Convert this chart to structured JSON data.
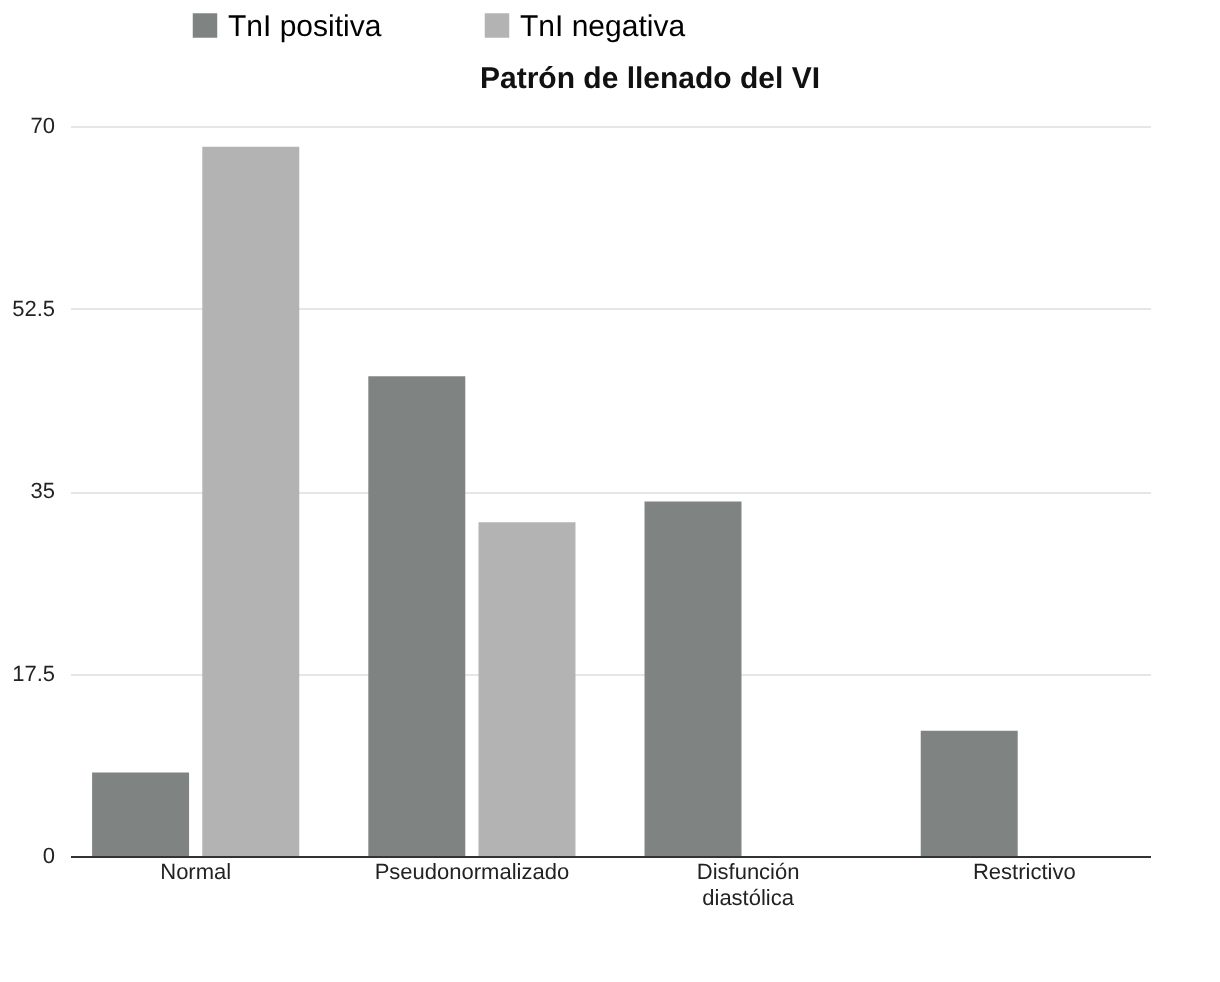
{
  "chart_data": {
    "type": "bar",
    "title": "Patrón de llenado del VI",
    "categories": [
      "Normal",
      "Pseudonormalizado",
      "Disfunción diastólica",
      "Restrictivo"
    ],
    "series": [
      {
        "name": "TnI positiva",
        "color": "#7f8482",
        "values": [
          8,
          46,
          34,
          12
        ]
      },
      {
        "name": "TnI negativa",
        "color": "#b3b3b3",
        "values": [
          68,
          32,
          0,
          0
        ]
      }
    ],
    "ylim": [
      0,
      70
    ],
    "yticks": [
      0,
      17.5,
      35,
      52.5,
      70
    ],
    "grid": "y",
    "legend": "top"
  }
}
